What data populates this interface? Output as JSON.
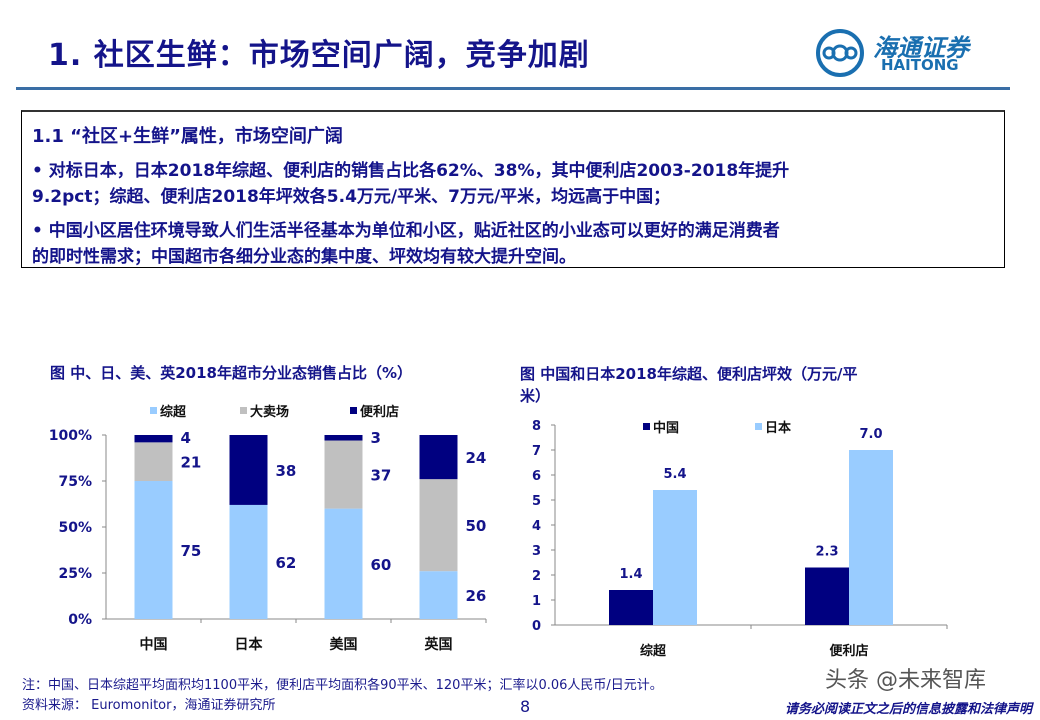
{
  "header": {
    "title": "1. 社区生鲜：市场空间广阔，竞争加剧",
    "logo_cn": "海通证券",
    "logo_en": "HAITONG"
  },
  "summary": {
    "heading": "1.1 “社区+生鲜”属性，市场空间广阔",
    "bullets": [
      [
        "•  对标日本，日本2018年综超、便利店的销售占比各62%、38%，其中便利店2003-2018年提升",
        "9.2pct；综超、便利店2018年坪效各5.4万元/平米、7万元/平米，均远高于中国；"
      ],
      [
        "•  中国小区居住环境导致人们生活半径基本为单位和小区，贴近社区的小业态可以更好的满足消费者",
        "的即时性需求；中国超市各细分业态的集中度、坪效均有较大提升空间。"
      ]
    ]
  },
  "chart_data": [
    {
      "type": "bar",
      "stacked": true,
      "title": "图  中、日、美、英2018年超市分业态销售占比（%）",
      "categories": [
        "中国",
        "日本",
        "美国",
        "英国"
      ],
      "series": [
        {
          "name": "综超",
          "values": [
            75,
            62,
            60,
            26
          ],
          "color": "#99ccff"
        },
        {
          "name": "大卖场",
          "values": [
            21,
            0,
            37,
            50
          ],
          "color": "#c0c0c0"
        },
        {
          "name": "便利店",
          "values": [
            4,
            38,
            3,
            24
          ],
          "color": "#000080"
        }
      ],
      "data_labels": [
        [
          "75",
          "21",
          "4"
        ],
        [
          "62",
          "",
          "38"
        ],
        [
          "60",
          "37",
          "3"
        ],
        [
          "26",
          "50",
          "24"
        ]
      ],
      "yticks": [
        "0%",
        "25%",
        "50%",
        "75%",
        "100%"
      ],
      "ylim": [
        0,
        100
      ],
      "legend": "top",
      "grid": false
    },
    {
      "type": "bar",
      "title_lines": [
        "图  中国和日本2018年综超、便利店坪效（万元/平",
        "米）"
      ],
      "categories": [
        "综超",
        "便利店"
      ],
      "series": [
        {
          "name": "中国",
          "values": [
            1.4,
            2.3
          ],
          "labels": [
            "1.4",
            "2.3"
          ],
          "color": "#000080"
        },
        {
          "name": "日本",
          "values": [
            5.4,
            7.0
          ],
          "labels": [
            "5.4",
            "7.0"
          ],
          "color": "#99ccff"
        }
      ],
      "yticks": [
        "0",
        "1",
        "2",
        "3",
        "4",
        "5",
        "6",
        "7",
        "8"
      ],
      "ylim": [
        0,
        8
      ],
      "legend": "top",
      "grid": false
    }
  ],
  "footer": {
    "note": "注：中国、日本综超平均面积均1100平米，便利店平均面积各90平米、120平米；汇率以0.06人民币/日元计。",
    "source": "资料来源： Euromonitor，海通证券研究所",
    "page": "8",
    "watermark": "头条 @未来智库",
    "disclaimer": "请务必阅读正文之后的信息披露和法律声明"
  }
}
